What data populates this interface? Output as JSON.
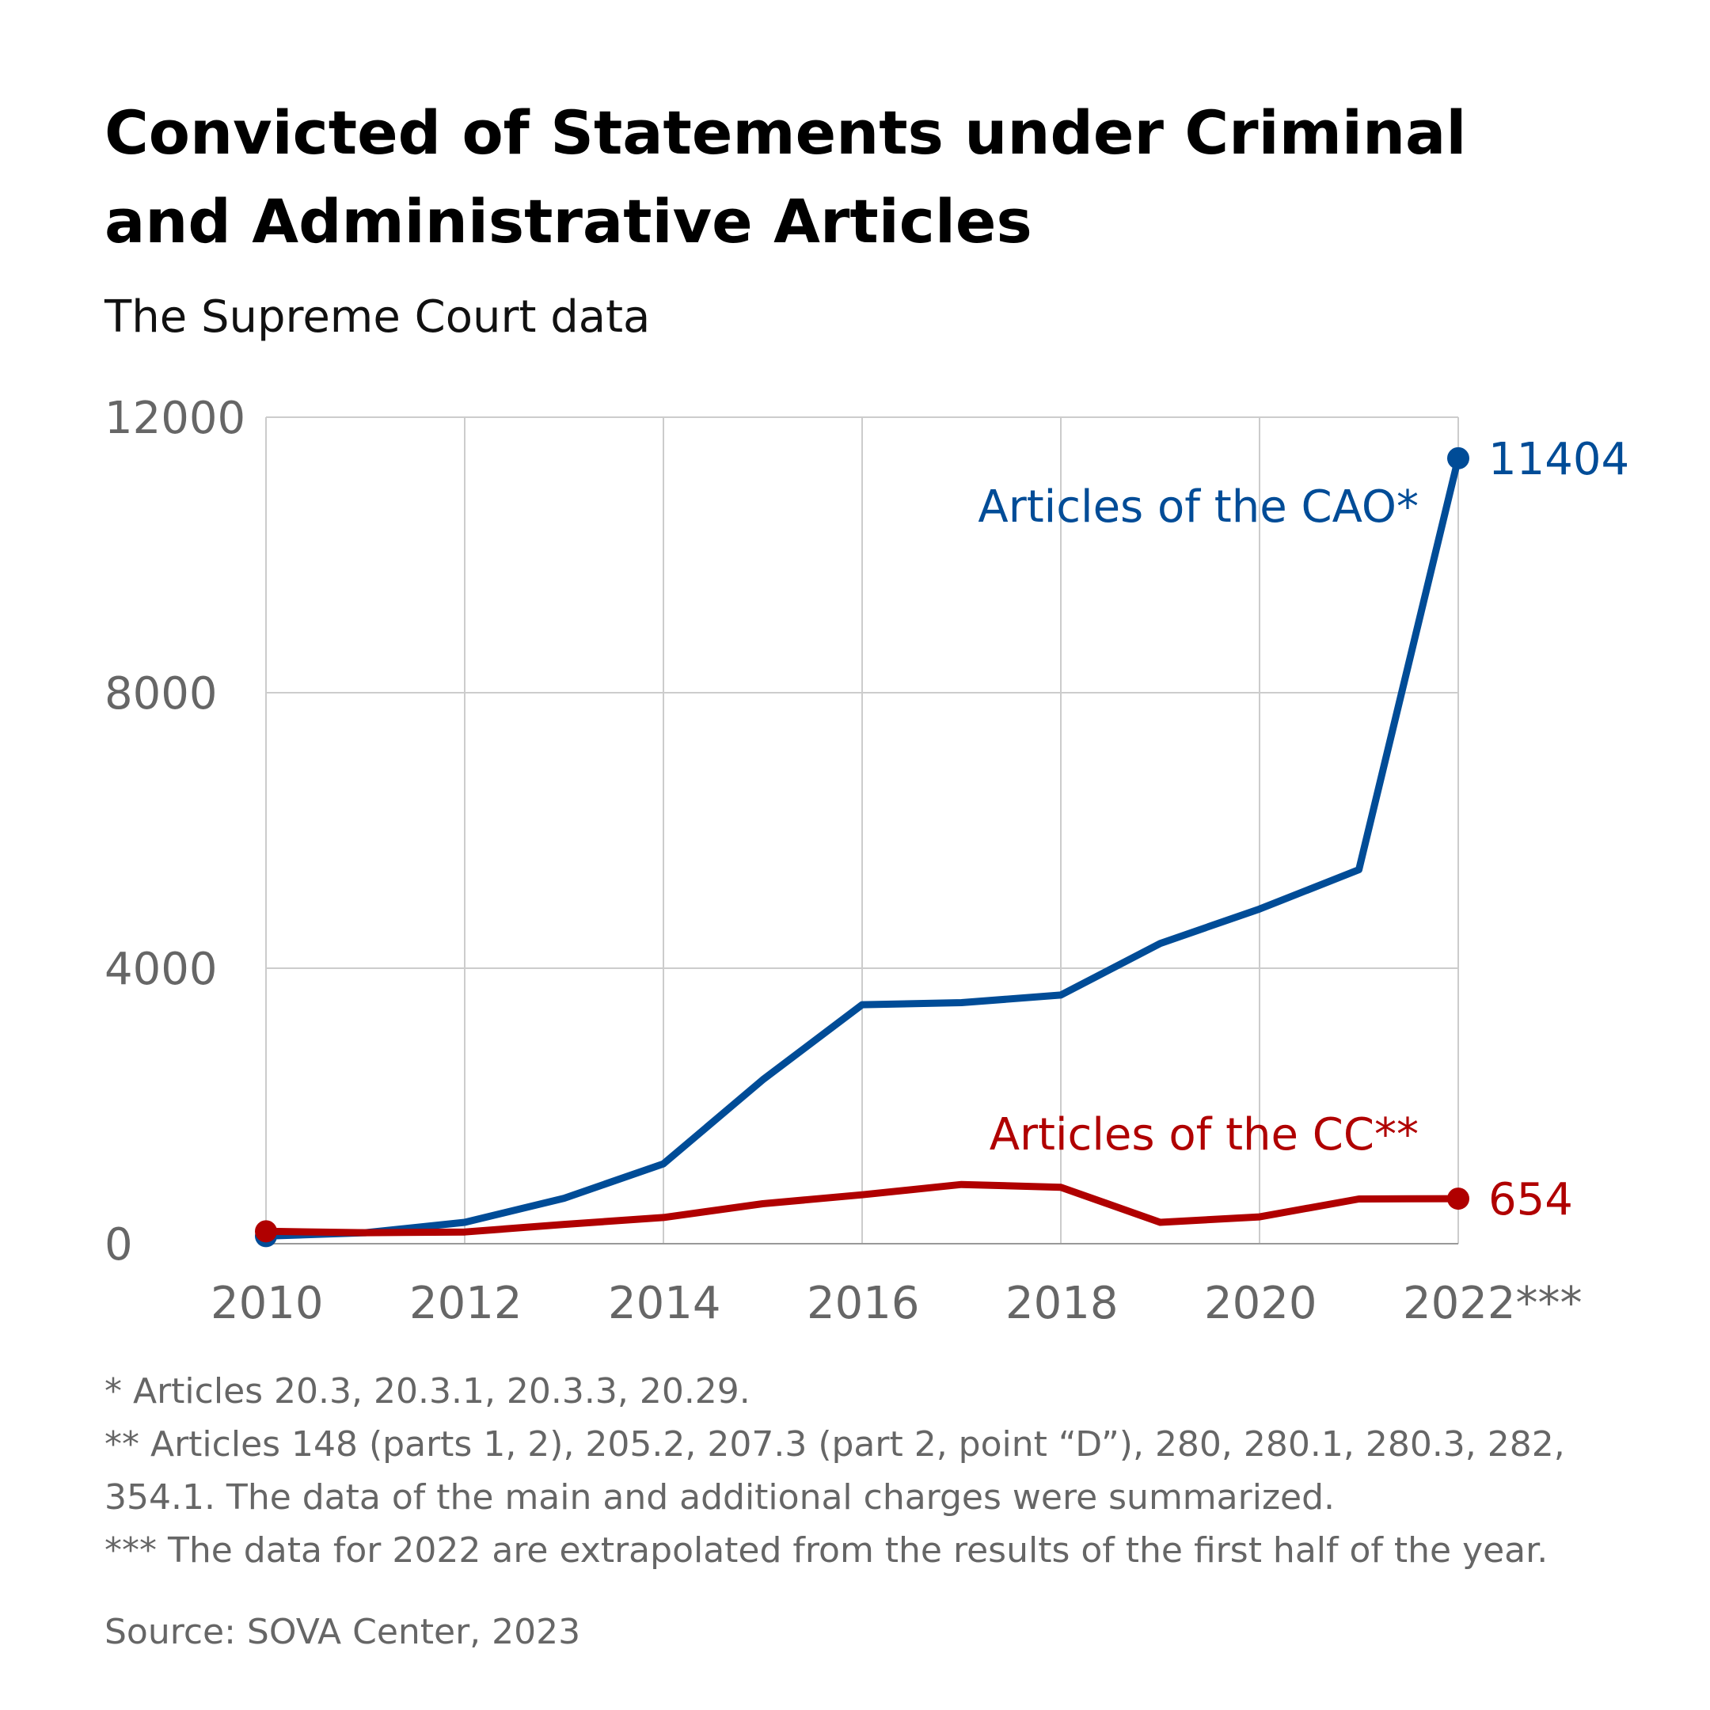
{
  "chart_data": {
    "type": "line",
    "title": "Convicted of Statements under Criminal and Administrative Articles",
    "subtitle": "The Supreme Court data",
    "xlabel": "",
    "ylabel": "",
    "x": [
      2010,
      2011,
      2012,
      2013,
      2014,
      2015,
      2016,
      2017,
      2018,
      2019,
      2020,
      2021,
      2022
    ],
    "xlim": [
      2010,
      2022
    ],
    "ylim": [
      0,
      12000
    ],
    "x_ticks": [
      {
        "value": 2010,
        "label": "2010"
      },
      {
        "value": 2012,
        "label": "2012"
      },
      {
        "value": 2014,
        "label": "2014"
      },
      {
        "value": 2016,
        "label": "2016"
      },
      {
        "value": 2018,
        "label": "2018"
      },
      {
        "value": 2020,
        "label": "2020"
      },
      {
        "value": 2022,
        "label": "2022***"
      }
    ],
    "y_ticks": [
      {
        "value": 0,
        "label": "0"
      },
      {
        "value": 4000,
        "label": "4000"
      },
      {
        "value": 8000,
        "label": "8000"
      },
      {
        "value": 12000,
        "label": "12000"
      }
    ],
    "grid": true,
    "series": [
      {
        "name": "Articles of the CAO*",
        "color": "#004c97",
        "values": [
          110,
          160,
          310,
          660,
          1160,
          2380,
          3470,
          3500,
          3610,
          4360,
          4860,
          5430,
          11404
        ],
        "end_label": "11404"
      },
      {
        "name": "Articles of the CC**",
        "color": "#b00000",
        "values": [
          180,
          160,
          170,
          280,
          380,
          580,
          710,
          860,
          820,
          310,
          390,
          650,
          654
        ],
        "end_label": "654"
      }
    ],
    "notes": [
      "* Articles 20.3, 20.3.1, 20.3.3, 20.29.",
      "** Articles 148 (parts 1, 2), 205.2, 207.3 (part 2, point “D”), 280, 280.1, 280.3, 282, 354.1. The data of the main and additional charges were summarized.",
      "*** The data for 2022 are extrapolated from the results of the first half of the year."
    ],
    "source": "Source: SOVA Center, 2023"
  }
}
